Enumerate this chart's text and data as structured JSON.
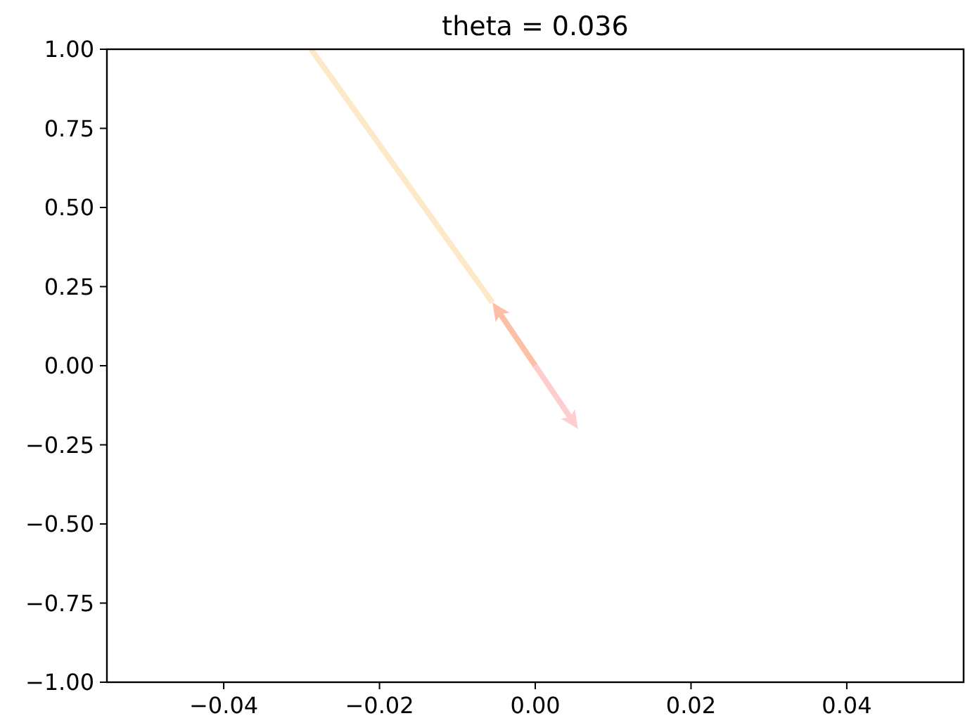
{
  "chart_data": {
    "type": "line",
    "title": "theta = 0.036",
    "series": [
      {
        "color": "#fde5c2",
        "x": [
          -0.0288,
          -0.0055
        ],
        "values": [
          1.0,
          0.2
        ]
      }
    ],
    "xlim": [
      -0.055,
      0.055
    ],
    "xticks": [
      {
        "value": -0.04,
        "label": "−0.04"
      },
      {
        "value": -0.02,
        "label": "−0.02"
      },
      {
        "value": 0.0,
        "label": "0.00"
      },
      {
        "value": 0.02,
        "label": "0.02"
      },
      {
        "value": 0.04,
        "label": "0.04"
      }
    ],
    "ylim": [
      -1.0,
      1.0
    ],
    "yticks": [
      {
        "value": -1.0,
        "label": "−1.00"
      },
      {
        "value": -0.75,
        "label": "−0.75"
      },
      {
        "value": -0.5,
        "label": "−0.50"
      },
      {
        "value": -0.25,
        "label": "−0.25"
      },
      {
        "value": 0.0,
        "label": "0.00"
      },
      {
        "value": 0.25,
        "label": "0.25"
      },
      {
        "value": 0.5,
        "label": "0.50"
      },
      {
        "value": 0.75,
        "label": "0.75"
      },
      {
        "value": 1.0,
        "label": "1.00"
      }
    ],
    "grid": false
  }
}
